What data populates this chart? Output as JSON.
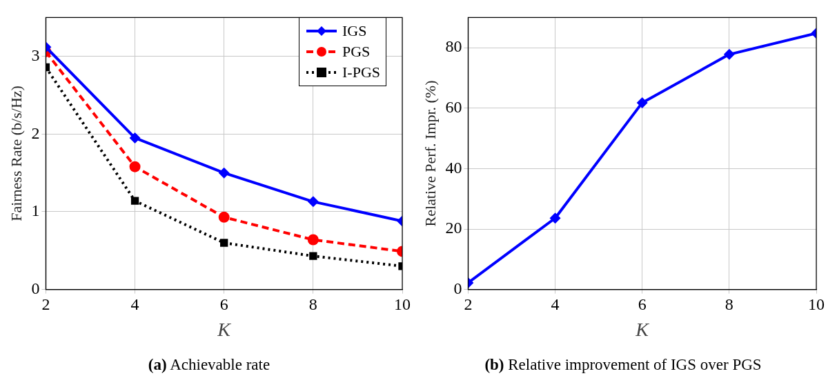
{
  "chart_data": [
    {
      "type": "line",
      "xlabel": "K",
      "ylabel": "Fairness Rate (b/s/Hz)",
      "x": [
        2,
        4,
        6,
        8,
        10
      ],
      "xlim": [
        2,
        10
      ],
      "xticks": [
        2,
        4,
        6,
        8,
        10
      ],
      "ylim": [
        0,
        3.5
      ],
      "yticks": [
        0,
        1,
        2,
        3
      ],
      "grid": true,
      "legend": "top right",
      "annotations": [
        "(a) Achievable rate"
      ],
      "series": [
        {
          "name": "IGS",
          "color": "#0000ff",
          "marker": "diamond",
          "line_style": "solid",
          "values": [
            3.12,
            1.95,
            1.5,
            1.13,
            0.88
          ]
        },
        {
          "name": "PGS",
          "color": "#ff0000",
          "marker": "circle",
          "line_style": "dashed",
          "values": [
            3.06,
            1.58,
            0.93,
            0.64,
            0.49
          ]
        },
        {
          "name": "I-PGS",
          "color": "#000000",
          "marker": "square",
          "line_style": "dotted",
          "values": [
            2.86,
            1.14,
            0.6,
            0.43,
            0.3
          ]
        }
      ]
    },
    {
      "type": "line",
      "xlabel": "K",
      "ylabel": "Relative Perf. Impr. (%)",
      "x": [
        2,
        4,
        6,
        8,
        10
      ],
      "xlim": [
        2,
        10
      ],
      "xticks": [
        2,
        4,
        6,
        8,
        10
      ],
      "ylim": [
        0,
        90
      ],
      "yticks": [
        0,
        20,
        40,
        60,
        80
      ],
      "grid": true,
      "annotations": [
        "(b) Relative improvement of IGS over PGS"
      ],
      "series": [
        {
          "color": "#0000ff",
          "marker": "diamond",
          "line_style": "solid",
          "values": [
            2.2,
            23.6,
            61.8,
            77.8,
            84.8
          ]
        }
      ]
    }
  ]
}
